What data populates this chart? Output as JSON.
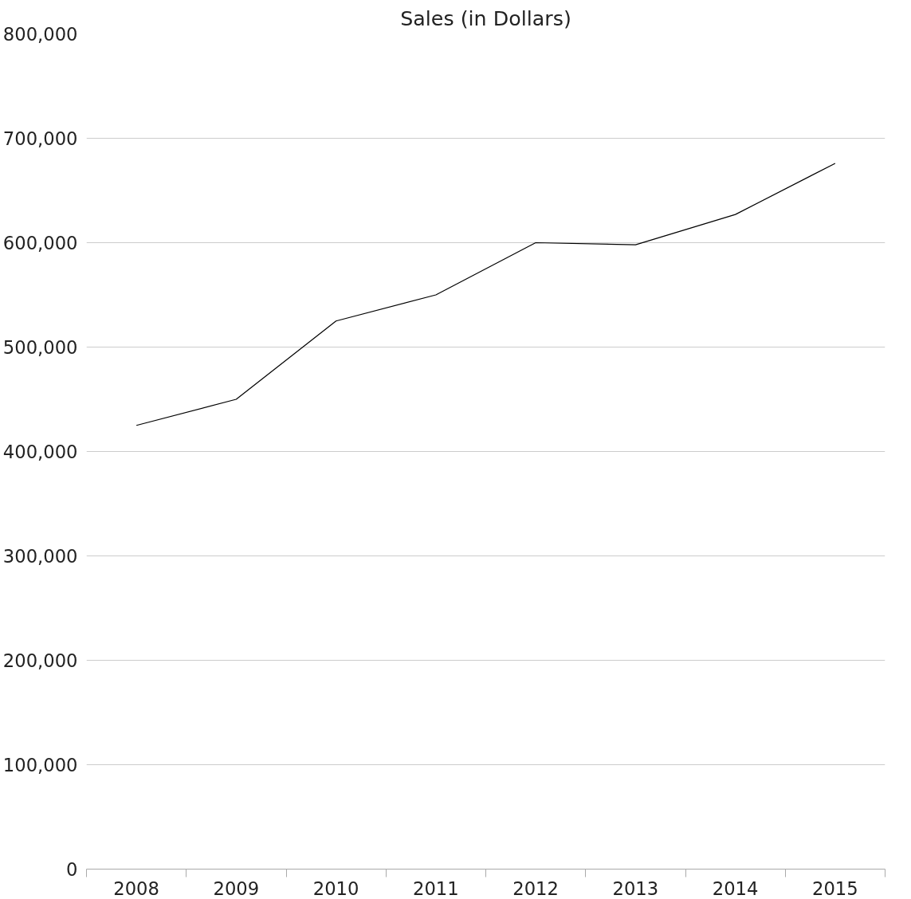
{
  "chart_data": {
    "type": "line",
    "title": "Sales (in Dollars)",
    "categories": [
      "2008",
      "2009",
      "2010",
      "2011",
      "2012",
      "2013",
      "2014",
      "2015"
    ],
    "series": [
      {
        "color": "#000000",
        "values": [
          425000,
          450000,
          525000,
          550000,
          600000,
          598000,
          627000,
          676000
        ]
      }
    ],
    "ylim": [
      0,
      800000
    ],
    "yticks": [
      {
        "value": 0,
        "label": "0"
      },
      {
        "value": 100000,
        "label": "100,000"
      },
      {
        "value": 200000,
        "label": "200,000"
      },
      {
        "value": 300000,
        "label": "300,000"
      },
      {
        "value": 400000,
        "label": "400,000"
      },
      {
        "value": 500000,
        "label": "500,000"
      },
      {
        "value": 600000,
        "label": "600,000"
      },
      {
        "value": 700000,
        "label": "700,000"
      },
      {
        "value": 800000,
        "label": "800,000"
      }
    ],
    "grid": "y",
    "marker": "none",
    "line_style": "solid"
  }
}
